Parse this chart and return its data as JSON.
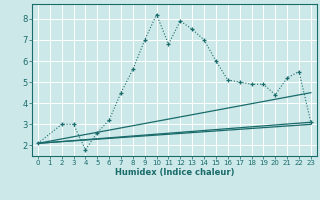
{
  "xlabel": "Humidex (Indice chaleur)",
  "bg_color": "#cce8e8",
  "grid_color": "#ffffff",
  "line_color": "#1a6b6b",
  "xlim": [
    -0.5,
    23.5
  ],
  "ylim": [
    1.5,
    8.7
  ],
  "xticks": [
    0,
    1,
    2,
    3,
    4,
    5,
    6,
    7,
    8,
    9,
    10,
    11,
    12,
    13,
    14,
    15,
    16,
    17,
    18,
    19,
    20,
    21,
    22,
    23
  ],
  "yticks": [
    2,
    3,
    4,
    5,
    6,
    7,
    8
  ],
  "line1_x": [
    0,
    2,
    3,
    4,
    5,
    6,
    7,
    8,
    9,
    10,
    11,
    12,
    13,
    14,
    15,
    16,
    17,
    18,
    19,
    20,
    21,
    22,
    23
  ],
  "line1_y": [
    2.1,
    3.0,
    3.0,
    1.8,
    2.6,
    3.2,
    4.5,
    5.6,
    7.0,
    8.2,
    6.8,
    7.9,
    7.5,
    7.0,
    6.0,
    5.1,
    5.0,
    4.9,
    4.9,
    4.4,
    5.2,
    5.5,
    3.1
  ],
  "line2_x": [
    0,
    23
  ],
  "line2_y": [
    2.1,
    3.1
  ],
  "line3_x": [
    0,
    23
  ],
  "line3_y": [
    2.1,
    4.5
  ],
  "line4_x": [
    0,
    23
  ],
  "line4_y": [
    2.1,
    3.0
  ],
  "xlabel_fontsize": 6,
  "xtick_fontsize": 5,
  "ytick_fontsize": 6
}
